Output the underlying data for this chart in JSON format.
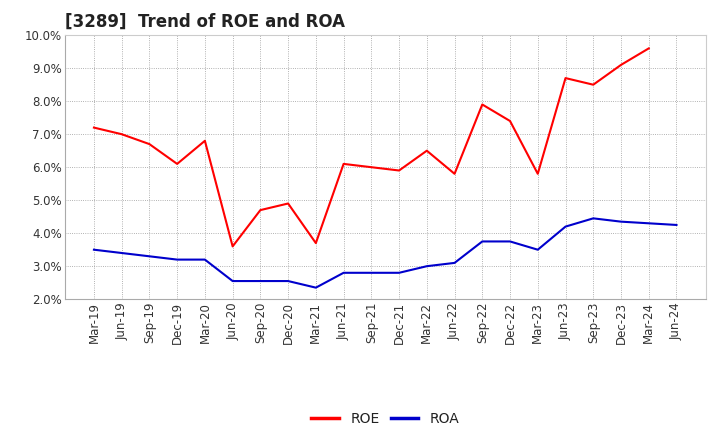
{
  "title": "[3289]  Trend of ROE and ROA",
  "labels": [
    "Mar-19",
    "Jun-19",
    "Sep-19",
    "Dec-19",
    "Mar-20",
    "Jun-20",
    "Sep-20",
    "Dec-20",
    "Mar-21",
    "Jun-21",
    "Sep-21",
    "Dec-21",
    "Mar-22",
    "Jun-22",
    "Sep-22",
    "Dec-22",
    "Mar-23",
    "Jun-23",
    "Sep-23",
    "Dec-23",
    "Mar-24",
    "Jun-24"
  ],
  "ROE": [
    7.2,
    7.0,
    6.7,
    6.1,
    6.8,
    3.6,
    4.7,
    4.9,
    3.7,
    6.1,
    6.0,
    5.9,
    6.5,
    5.8,
    7.9,
    7.4,
    5.8,
    8.7,
    8.5,
    9.1,
    9.6,
    null
  ],
  "ROA": [
    3.5,
    3.4,
    3.3,
    3.2,
    3.2,
    2.55,
    2.55,
    2.55,
    2.35,
    2.8,
    2.8,
    2.8,
    3.0,
    3.1,
    3.75,
    3.75,
    3.5,
    4.2,
    4.45,
    4.35,
    4.3,
    4.25
  ],
  "roe_color": "#ff0000",
  "roa_color": "#0000cc",
  "background_color": "#ffffff",
  "grid_color": "#999999",
  "ylim": [
    2.0,
    10.0
  ],
  "ytick_vals": [
    2.0,
    3.0,
    4.0,
    5.0,
    6.0,
    7.0,
    8.0,
    9.0,
    10.0
  ],
  "ytick_labels": [
    "2.0%",
    "3.0%",
    "4.0%",
    "5.0%",
    "6.0%",
    "7.0%",
    "8.0%",
    "9.0%",
    "10.0%"
  ],
  "title_fontsize": 12,
  "legend_fontsize": 10,
  "tick_fontsize": 8.5
}
